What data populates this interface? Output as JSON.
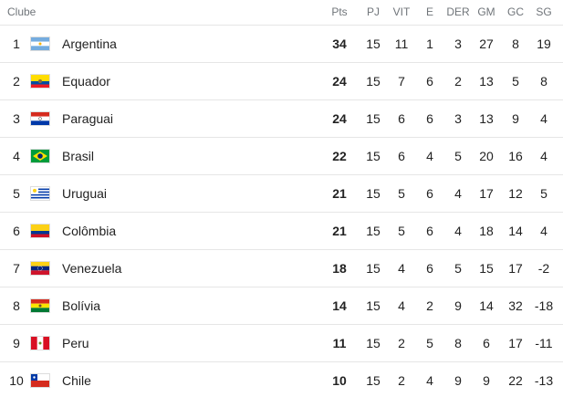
{
  "table": {
    "header": [
      "Clube",
      "Pts",
      "PJ",
      "VIT",
      "E",
      "DER",
      "GM",
      "GC",
      "SG"
    ],
    "rows": [
      [
        1,
        "Argentina",
        34,
        15,
        11,
        1,
        3,
        27,
        8,
        19
      ],
      [
        2,
        "Equador",
        24,
        15,
        7,
        6,
        2,
        13,
        5,
        8
      ],
      [
        3,
        "Paraguai",
        24,
        15,
        6,
        6,
        3,
        13,
        9,
        4
      ],
      [
        4,
        "Brasil",
        22,
        15,
        6,
        4,
        5,
        20,
        16,
        4
      ],
      [
        5,
        "Uruguai",
        21,
        15,
        5,
        6,
        4,
        17,
        12,
        5
      ],
      [
        6,
        "Colômbia",
        21,
        15,
        5,
        6,
        4,
        18,
        14,
        4
      ],
      [
        7,
        "Venezuela",
        18,
        15,
        4,
        6,
        5,
        15,
        17,
        -2
      ],
      [
        8,
        "Bolívia",
        14,
        15,
        4,
        2,
        9,
        14,
        32,
        -18
      ],
      [
        9,
        "Peru",
        11,
        15,
        2,
        5,
        8,
        6,
        17,
        -11
      ],
      [
        10,
        "Chile",
        10,
        15,
        2,
        4,
        9,
        9,
        22,
        -13
      ]
    ]
  }
}
